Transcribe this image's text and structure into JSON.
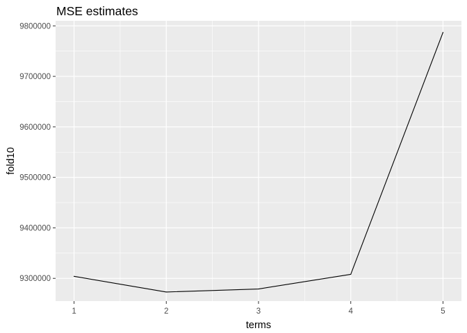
{
  "chart_data": {
    "type": "line",
    "title": "MSE estimates",
    "xlabel": "terms",
    "ylabel": "fold10",
    "x": [
      1,
      2,
      3,
      4,
      5
    ],
    "series": [
      {
        "values": [
          9304000,
          9273000,
          9279000,
          9308000,
          9787000
        ]
      }
    ],
    "xlim": [
      0.8,
      5.2
    ],
    "ylim": [
      9255000,
      9810000
    ],
    "x_ticks": [
      "1",
      "2",
      "3",
      "4",
      "5"
    ],
    "y_ticks": [
      "9300000",
      "9400000",
      "9500000",
      "9600000",
      "9700000",
      "9800000"
    ],
    "y_tick_values": [
      9300000,
      9400000,
      9500000,
      9600000,
      9700000,
      9800000
    ],
    "grid": true,
    "colors": {
      "panel_background": "#ebebeb",
      "grid_major": "#ffffff",
      "line": "#000000",
      "tick_text": "#4d4d4d"
    }
  }
}
